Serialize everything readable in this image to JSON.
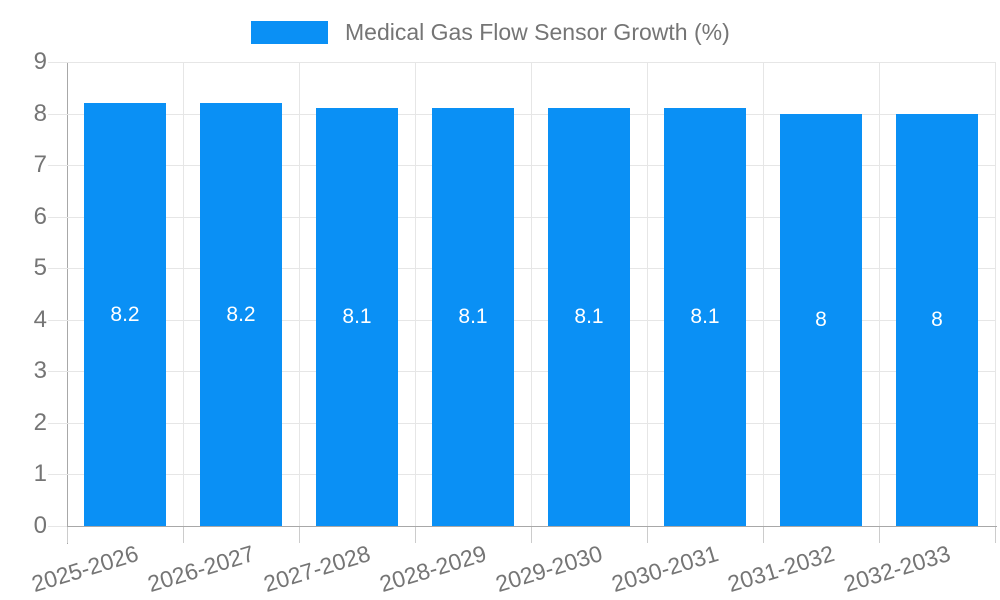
{
  "chart_data": {
    "type": "bar",
    "title": "Medical Gas Flow Sensor Growth (%)",
    "categories": [
      "2025-2026",
      "2026-2027",
      "2027-2028",
      "2028-2029",
      "2029-2030",
      "2030-2031",
      "2031-2032",
      "2032-2033"
    ],
    "values": [
      8.2,
      8.2,
      8.1,
      8.1,
      8.1,
      8.1,
      8,
      8
    ],
    "bar_value_labels": [
      "8.2",
      "8.2",
      "8.1",
      "8.1",
      "8.1",
      "8.1",
      "8",
      "8"
    ],
    "xlabel": "",
    "ylabel": "",
    "ylim": [
      0,
      9
    ],
    "y_tick_labels": [
      "0",
      "1",
      "2",
      "3",
      "4",
      "5",
      "6",
      "7",
      "8",
      "9"
    ],
    "grid": true,
    "legend_position": "top",
    "colors": {
      "bar": "#0a90f5",
      "bar_value_text": "#ffffff",
      "axis_text": "#757575",
      "gridline": "#e6e6e6",
      "axis_line": "#a8a8a8",
      "tick": "#cccccc",
      "background": "#ffffff"
    }
  }
}
